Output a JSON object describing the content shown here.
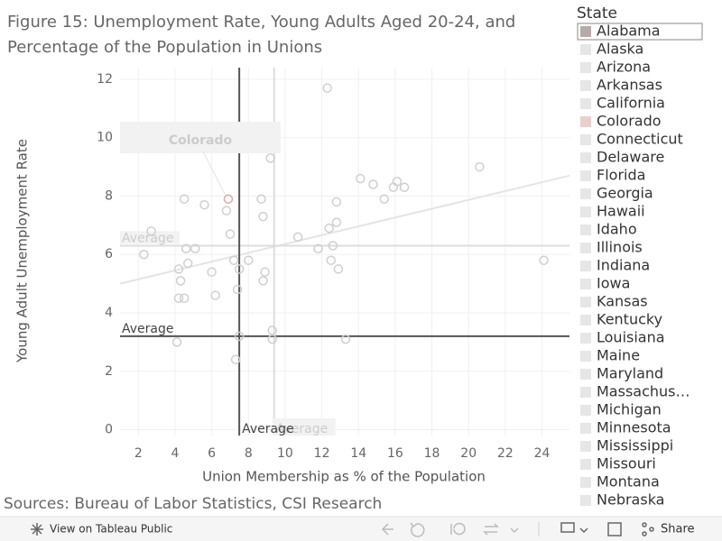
{
  "chart_data": {
    "type": "scatter",
    "title_lines": [
      "Figure 15: Unemployment Rate, Young Adults Aged 20-24, and",
      "Percentage of the Population in Unions"
    ],
    "x_label": "Union Membership as % of the Population",
    "y_label": "Young Adult Unemployment Rate",
    "xlim": [
      1,
      25.5
    ],
    "ylim": [
      -0.2,
      12.4
    ],
    "xticks": [
      2,
      4,
      6,
      8,
      10,
      12,
      14,
      16,
      18,
      20,
      22,
      24
    ],
    "yticks": [
      0,
      2,
      4,
      6,
      8,
      10,
      12
    ],
    "grid": true,
    "series": [
      {
        "name": "State",
        "color": "#cfcfcf",
        "x": [
          12.3,
          20.6,
          9.2,
          14.1,
          14.8,
          16.1,
          15.9,
          16.5,
          15.4,
          4.5,
          6.9,
          8.7,
          5.6,
          6.8,
          8.8,
          12.8,
          12.8,
          12.4,
          2.7,
          7.0,
          10.7,
          12.6,
          11.8,
          4.6,
          5.1,
          2.3,
          7.2,
          8.0,
          12.5,
          12.9,
          4.7,
          4.2,
          7.5,
          6.0,
          8.9,
          8.8,
          4.3,
          7.4,
          6.2,
          4.2,
          4.5,
          24.1,
          9.3,
          9.3,
          7.5,
          13.3,
          4.1,
          7.3
        ],
        "values": [
          11.7,
          9.0,
          9.3,
          8.6,
          8.4,
          8.5,
          8.3,
          8.3,
          7.9,
          7.9,
          7.9,
          7.9,
          7.7,
          7.5,
          7.3,
          7.8,
          7.1,
          6.9,
          6.8,
          6.7,
          6.6,
          6.3,
          6.2,
          6.2,
          6.2,
          6.0,
          5.8,
          5.8,
          5.8,
          5.5,
          5.7,
          5.5,
          5.5,
          5.4,
          5.4,
          5.1,
          5.1,
          4.8,
          4.6,
          4.5,
          4.5,
          5.8,
          3.4,
          3.1,
          3.2,
          3.1,
          3.0,
          2.4
        ]
      }
    ],
    "highlight": {
      "index": 10,
      "color": "#e0a8a8"
    },
    "annotation": {
      "text": "Colorado"
    },
    "trend_line": {
      "x": [
        1,
        25.5
      ],
      "y": [
        5.0,
        8.7
      ],
      "color": "#e4e4e4"
    },
    "reference_lines": [
      {
        "axis": "y",
        "value": 6.3,
        "label": "Average",
        "color": "#dddddd"
      },
      {
        "axis": "x",
        "value": 9.4,
        "label": "Average",
        "color": "#dddddd"
      },
      {
        "axis": "y",
        "value": 3.2,
        "label": "Average",
        "color": "#555555"
      },
      {
        "axis": "x",
        "value": 7.5,
        "label": "Average",
        "color": "#555555"
      }
    ]
  },
  "legend": {
    "title": "State",
    "items": [
      "Alabama",
      "Alaska",
      "Arizona",
      "Arkansas",
      "California",
      "Colorado",
      "Connecticut",
      "Delaware",
      "Florida",
      "Georgia",
      "Hawaii",
      "Idaho",
      "Illinois",
      "Indiana",
      "Iowa",
      "Kansas",
      "Kentucky",
      "Louisiana",
      "Maine",
      "Maryland",
      "Massachus…",
      "Michigan",
      "Minnesota",
      "Mississippi",
      "Missouri",
      "Montana",
      "Nebraska"
    ],
    "colors": [
      "#b5aba8",
      "#e6e6e6",
      "#e6e6e6",
      "#e6e6e6",
      "#e6e6e6",
      "#ebcfcf",
      "#e6e6e6",
      "#e6e6e6",
      "#e6e6e6",
      "#e6e6e6",
      "#e6e6e6",
      "#e6e6e6",
      "#e6e6e6",
      "#e6e6e6",
      "#e6e6e6",
      "#e6e6e6",
      "#e6e6e6",
      "#e6e6e6",
      "#e6e6e6",
      "#e6e6e6",
      "#e6e6e6",
      "#e6e6e6",
      "#e6e6e6",
      "#e6e6e6",
      "#e6e6e6",
      "#e6e6e6",
      "#e6e6e6"
    ]
  },
  "source": "Sources: Bureau of Labor Statistics, CSI Research",
  "toolbar": {
    "view": "View on Tableau Public",
    "share": "Share"
  }
}
